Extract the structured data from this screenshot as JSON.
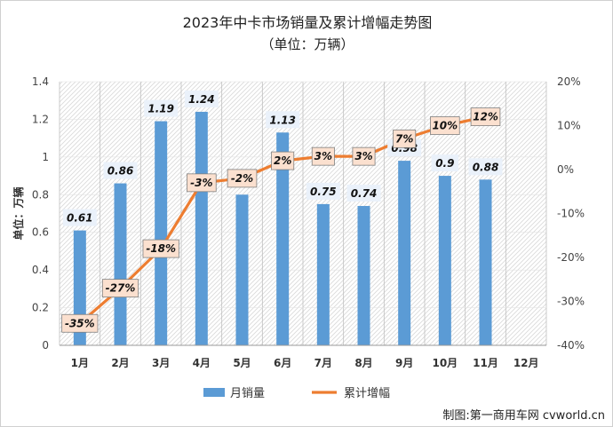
{
  "chart_data": {
    "type": "bar",
    "title": "2023年中卡市场销量及累计增幅走势图",
    "subtitle": "（单位：万辆）",
    "ylabel": "单位：万辆",
    "categories": [
      "1月",
      "2月",
      "3月",
      "4月",
      "5月",
      "6月",
      "7月",
      "8月",
      "9月",
      "10月",
      "11月",
      "12月"
    ],
    "ylim": [
      0,
      1.4
    ],
    "yticks": [
      "0",
      "0.2",
      "0.4",
      "0.6",
      "0.8",
      "1",
      "1.2",
      "1.4"
    ],
    "y2lim": [
      -40,
      20
    ],
    "y2ticks": [
      "-40%",
      "-30%",
      "-20%",
      "-10%",
      "0%",
      "10%",
      "20%"
    ],
    "series": [
      {
        "name": "月销量",
        "type": "bar",
        "color": "#5b9bd5",
        "values": [
          0.61,
          0.86,
          1.19,
          1.24,
          0.8,
          1.13,
          0.75,
          0.74,
          0.98,
          0.9,
          0.88,
          null
        ],
        "labels": [
          "0.61",
          "0.86",
          "1.19",
          "1.24",
          "",
          "1.13",
          "0.75",
          "0.74",
          "0.98",
          "0.9",
          "0.88",
          ""
        ]
      },
      {
        "name": "累计增幅",
        "type": "line",
        "axis": "right",
        "color": "#ed7d31",
        "values": [
          -35,
          -27,
          -18,
          -3,
          -2,
          2,
          3,
          3,
          7,
          10,
          12,
          null
        ],
        "labels": [
          "-35%",
          "-27%",
          "-18%",
          "-3%",
          "-2%",
          "2%",
          "3%",
          "3%",
          "7%",
          "10%",
          "12%",
          ""
        ]
      }
    ],
    "legend_position": "bottom",
    "grid": true
  },
  "source_note": "制图:第一商用车网 cvworld.cn"
}
